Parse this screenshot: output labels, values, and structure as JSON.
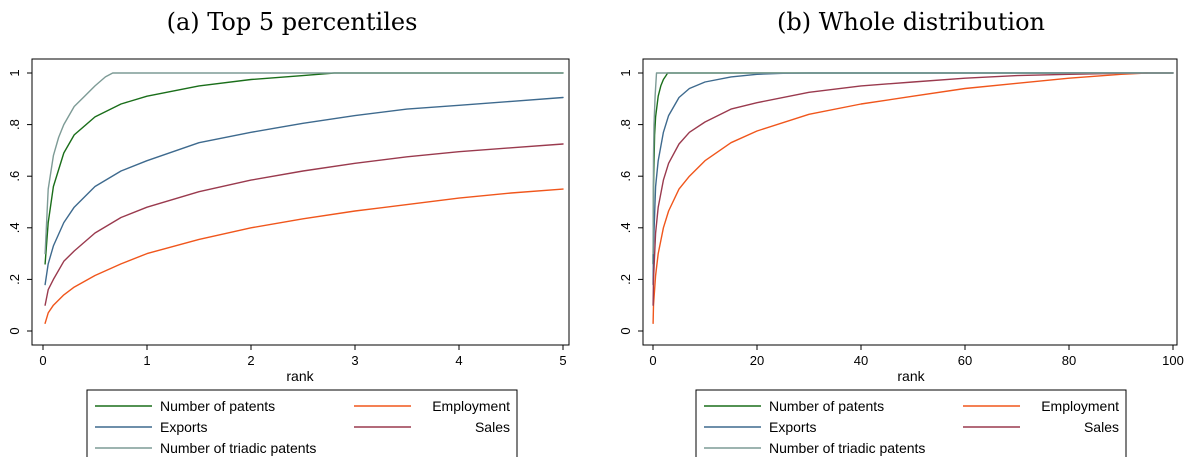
{
  "chart_data": [
    {
      "type": "line",
      "title": "(a) Top 5 percentiles",
      "xlabel": "rank",
      "ylabel": "",
      "xlim": [
        0,
        5
      ],
      "ylim": [
        0,
        1
      ],
      "x_ticks": [
        "0",
        "1",
        "2",
        "3",
        "4",
        "5"
      ],
      "y_ticks": [
        "0",
        ".2",
        ".4",
        ".6",
        ".8",
        "1"
      ],
      "grid": false,
      "legend_position": "bottom",
      "series": [
        {
          "name": "Number of patents",
          "color": "#1a6e1a",
          "x": [
            0.02,
            0.05,
            0.1,
            0.2,
            0.3,
            0.5,
            0.75,
            1,
            1.5,
            2,
            2.5,
            2.8,
            5
          ],
          "y": [
            0.26,
            0.42,
            0.56,
            0.69,
            0.76,
            0.83,
            0.88,
            0.91,
            0.95,
            0.975,
            0.99,
            1.0,
            1.0
          ]
        },
        {
          "name": "Employment",
          "color": "#f0561c",
          "x": [
            0.02,
            0.05,
            0.1,
            0.2,
            0.3,
            0.5,
            0.75,
            1,
            1.5,
            2,
            2.5,
            3,
            3.5,
            4,
            4.5,
            5
          ],
          "y": [
            0.03,
            0.07,
            0.1,
            0.14,
            0.17,
            0.215,
            0.26,
            0.3,
            0.355,
            0.4,
            0.435,
            0.465,
            0.49,
            0.515,
            0.535,
            0.55
          ]
        },
        {
          "name": "Exports",
          "color": "#3e6a8e",
          "x": [
            0.02,
            0.05,
            0.1,
            0.2,
            0.3,
            0.5,
            0.75,
            1,
            1.5,
            2,
            2.5,
            3,
            3.5,
            4,
            4.5,
            5
          ],
          "y": [
            0.18,
            0.26,
            0.33,
            0.42,
            0.48,
            0.56,
            0.62,
            0.66,
            0.73,
            0.77,
            0.805,
            0.835,
            0.86,
            0.875,
            0.89,
            0.905
          ]
        },
        {
          "name": "Sales",
          "color": "#9a3a4e",
          "x": [
            0.02,
            0.05,
            0.1,
            0.2,
            0.3,
            0.5,
            0.75,
            1,
            1.5,
            2,
            2.5,
            3,
            3.5,
            4,
            4.5,
            5
          ],
          "y": [
            0.1,
            0.16,
            0.2,
            0.27,
            0.31,
            0.38,
            0.44,
            0.48,
            0.54,
            0.585,
            0.62,
            0.65,
            0.675,
            0.695,
            0.71,
            0.725
          ]
        },
        {
          "name": "Number of triadic patents",
          "color": "#7d9b96",
          "x": [
            0.02,
            0.05,
            0.1,
            0.15,
            0.2,
            0.3,
            0.4,
            0.5,
            0.6,
            0.67,
            5
          ],
          "y": [
            0.3,
            0.55,
            0.68,
            0.75,
            0.8,
            0.87,
            0.91,
            0.95,
            0.985,
            1.0,
            1.0
          ]
        }
      ]
    },
    {
      "type": "line",
      "title": "(b) Whole distribution",
      "xlabel": "rank",
      "ylabel": "",
      "xlim": [
        0,
        100
      ],
      "ylim": [
        0,
        1
      ],
      "x_ticks": [
        "0",
        "20",
        "40",
        "60",
        "80",
        "100"
      ],
      "y_ticks": [
        "0",
        ".2",
        ".4",
        ".6",
        ".8",
        "1"
      ],
      "grid": false,
      "legend_position": "bottom",
      "series": [
        {
          "name": "Number of patents",
          "color": "#1a6e1a",
          "x": [
            0.02,
            0.1,
            0.3,
            0.5,
            1,
            1.5,
            2,
            2.5,
            2.8,
            100
          ],
          "y": [
            0.26,
            0.56,
            0.76,
            0.83,
            0.91,
            0.95,
            0.975,
            0.99,
            1.0,
            1.0
          ]
        },
        {
          "name": "Employment",
          "color": "#f0561c",
          "x": [
            0.02,
            0.1,
            0.5,
            1,
            2,
            3,
            5,
            7,
            10,
            15,
            20,
            30,
            40,
            50,
            60,
            70,
            80,
            90,
            95
          ],
          "y": [
            0.03,
            0.1,
            0.215,
            0.3,
            0.4,
            0.465,
            0.55,
            0.6,
            0.66,
            0.73,
            0.775,
            0.84,
            0.88,
            0.91,
            0.94,
            0.96,
            0.98,
            0.995,
            1.0
          ]
        },
        {
          "name": "Exports",
          "color": "#3e6a8e",
          "x": [
            0.02,
            0.1,
            0.5,
            1,
            2,
            3,
            5,
            7,
            10,
            15,
            20,
            25,
            30,
            100
          ],
          "y": [
            0.18,
            0.33,
            0.56,
            0.66,
            0.77,
            0.835,
            0.905,
            0.94,
            0.965,
            0.985,
            0.995,
            0.999,
            1.0,
            1.0
          ]
        },
        {
          "name": "Sales",
          "color": "#9a3a4e",
          "x": [
            0.02,
            0.1,
            0.5,
            1,
            2,
            3,
            5,
            7,
            10,
            15,
            20,
            30,
            40,
            50,
            60,
            70,
            80,
            90,
            95,
            100
          ],
          "y": [
            0.1,
            0.2,
            0.38,
            0.48,
            0.585,
            0.65,
            0.725,
            0.77,
            0.81,
            0.86,
            0.885,
            0.925,
            0.95,
            0.965,
            0.98,
            0.99,
            0.995,
            0.999,
            1.0,
            1.0
          ]
        },
        {
          "name": "Number of triadic patents",
          "color": "#7d9b96",
          "x": [
            0.02,
            0.1,
            0.2,
            0.4,
            0.67,
            100
          ],
          "y": [
            0.3,
            0.68,
            0.8,
            0.91,
            1.0,
            1.0
          ]
        }
      ]
    }
  ]
}
